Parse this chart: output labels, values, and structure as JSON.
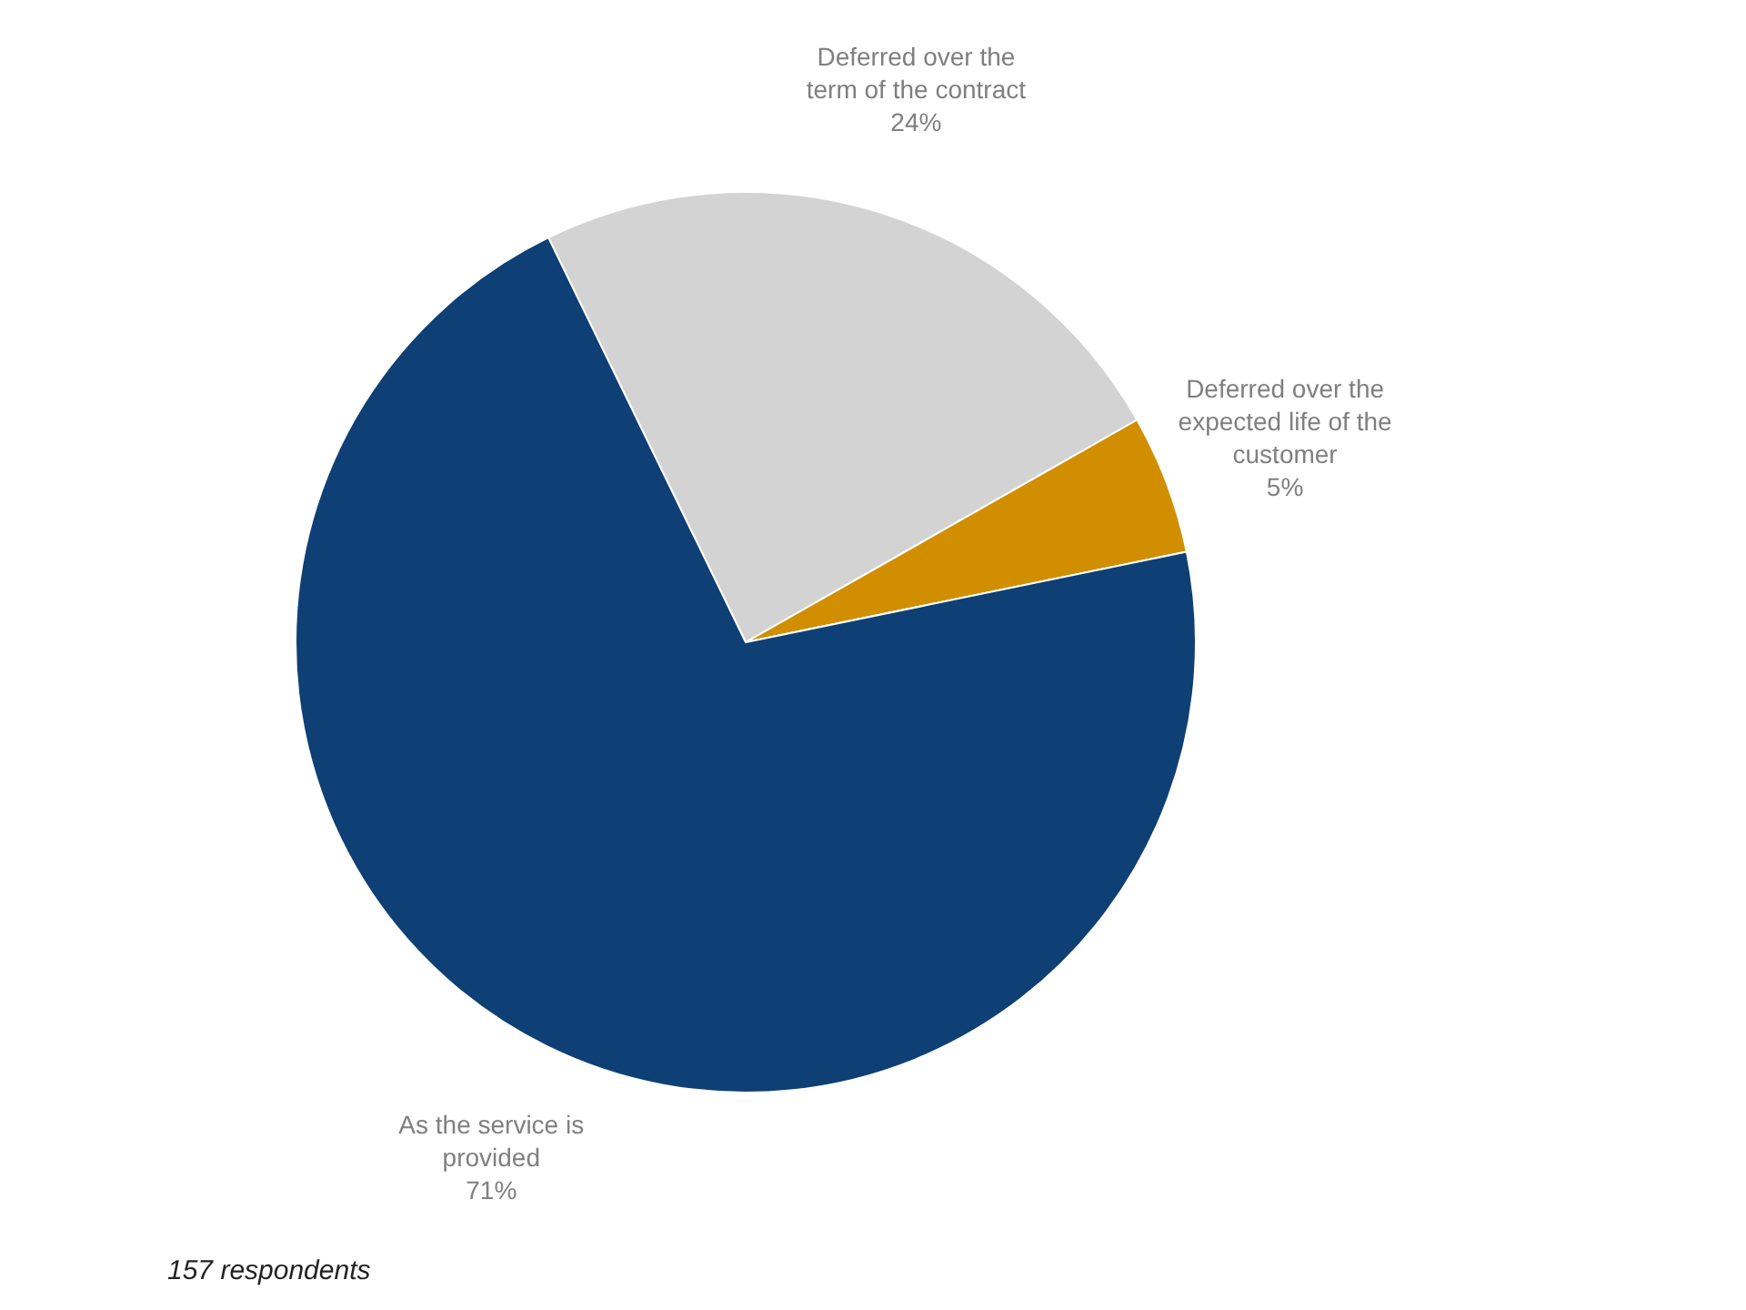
{
  "chart_data": {
    "type": "pie",
    "categories": [
      "Deferred over the term of the contract",
      "Deferred over the expected life of the customer",
      "As the service is provided"
    ],
    "values": [
      24,
      5,
      71
    ],
    "colors": [
      "#d3d3d3",
      "#d18f00",
      "#0e3f75"
    ],
    "value_labels": [
      "24%",
      "5%",
      "71%"
    ],
    "annotations": [
      "157 respondents"
    ]
  }
}
